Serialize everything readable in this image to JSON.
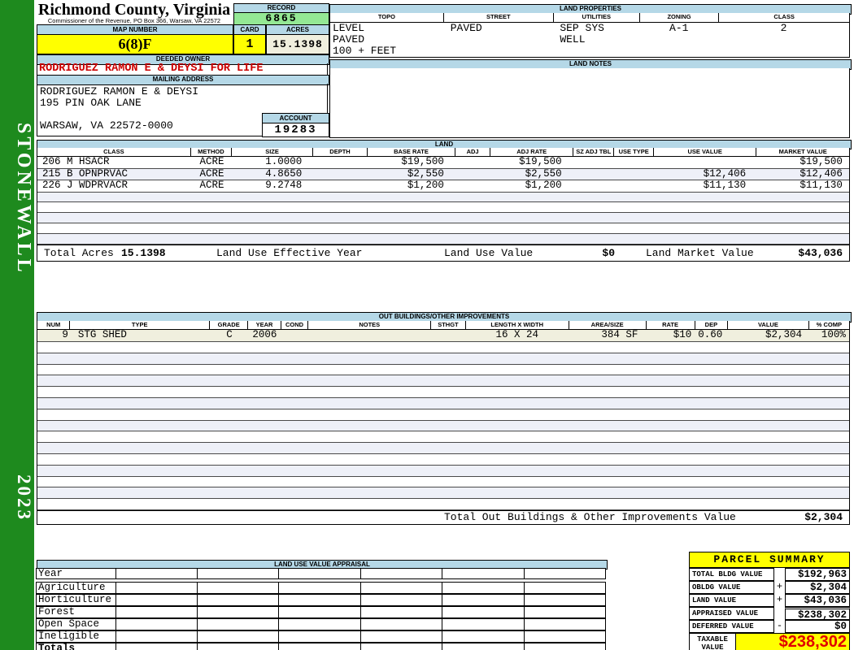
{
  "sidebar": {
    "district": "STONEWALL",
    "year": "2023"
  },
  "header": {
    "county": "Richmond County, Virginia",
    "commissioner_line": "Commissioner of the Revenue, PO Box 366, Warsaw, VA 22572",
    "record_label": "RECORD",
    "record_value": "6865",
    "map_number_label": "MAP NUMBER",
    "map_number_value": "6(8)F",
    "card_label": "CARD",
    "card_value": "1",
    "acres_label": "ACRES",
    "acres_value": "15.1398"
  },
  "owner": {
    "deeded_owner_label": "DEEDED OWNER",
    "deeded_owner": "RODRIGUEZ RAMON E & DEYSI FOR LIFE",
    "mailing_address_label": "MAILING ADDRESS",
    "address_line1": "RODRIGUEZ RAMON E & DEYSI",
    "address_line2": "195 PIN OAK LANE",
    "address_line3": "WARSAW, VA 22572-0000",
    "account_label": "ACCOUNT",
    "account_value": "19283"
  },
  "land_properties": {
    "title": "LAND PROPERTIES",
    "headers": [
      "TOPO",
      "STREET",
      "UTILITIES",
      "ZONING",
      "CLASS"
    ],
    "topo": [
      "LEVEL",
      "PAVED",
      "100 + FEET"
    ],
    "street": [
      "PAVED"
    ],
    "utilities": [
      "SEP SYS",
      "WELL"
    ],
    "zoning": "A-1",
    "class": "2"
  },
  "land_notes": {
    "title": "LAND NOTES"
  },
  "land": {
    "title": "LAND",
    "headers": [
      "CLASS",
      "METHOD",
      "SIZE",
      "DEPTH",
      "BASE RATE",
      "ADJ",
      "ADJ RATE",
      "SZ ADJ TBL",
      "USE TYPE",
      "USE VALUE",
      "MARKET VALUE"
    ],
    "rows": [
      {
        "class": "206 M HSACR",
        "method": "ACRE",
        "size": "1.0000",
        "depth": "",
        "base_rate": "$19,500",
        "adj": "",
        "adj_rate": "$19,500",
        "sz_adj_tbl": "",
        "use_type": "",
        "use_value": "",
        "market_value": "$19,500"
      },
      {
        "class": "215 B OPNPRVAC",
        "method": "ACRE",
        "size": "4.8650",
        "depth": "",
        "base_rate": "$2,550",
        "adj": "",
        "adj_rate": "$2,550",
        "sz_adj_tbl": "",
        "use_type": "",
        "use_value": "$12,406",
        "market_value": "$12,406"
      },
      {
        "class": "226 J WDPRVACR",
        "method": "ACRE",
        "size": "9.2748",
        "depth": "",
        "base_rate": "$1,200",
        "adj": "",
        "adj_rate": "$1,200",
        "sz_adj_tbl": "",
        "use_type": "",
        "use_value": "$11,130",
        "market_value": "$11,130"
      }
    ],
    "totals": {
      "total_acres_label": "Total Acres",
      "total_acres": "15.1398",
      "effective_year_label": "Land Use Effective Year",
      "use_value_label": "Land Use Value",
      "use_value": "$0",
      "market_value_label": "Land Market Value",
      "market_value": "$43,036"
    }
  },
  "out_buildings": {
    "title": "OUT BUILDINGS/OTHER IMPROVEMENTS",
    "headers": [
      "NUM",
      "TYPE",
      "GRADE",
      "YEAR",
      "COND",
      "NOTES",
      "STHGT",
      "LENGTH X WIDTH",
      "AREA/SIZE",
      "RATE",
      "DEP",
      "VALUE",
      "% COMP"
    ],
    "rows": [
      {
        "num": "9",
        "type": "STG SHED",
        "grade": "C",
        "year": "2006",
        "cond": "",
        "notes": "",
        "sthgt": "",
        "length_x_width": "16 X 24",
        "area_size": "384 SF",
        "rate": "$10",
        "dep": "0.60",
        "value": "$2,304",
        "pct_comp": "100%"
      }
    ],
    "total_label": "Total Out Buildings & Other Improvements Value",
    "total_value": "$2,304"
  },
  "land_use_appraisal": {
    "title": "LAND USE VALUE APPRAISAL",
    "row_labels": [
      "Year",
      "Agriculture",
      "Horticulture",
      "Forest",
      "Open Space",
      "Ineligible",
      "Totals"
    ]
  },
  "parcel_summary": {
    "title": "PARCEL SUMMARY",
    "rows": [
      {
        "label": "TOTAL BLDG VALUE",
        "op": "",
        "value": "$192,963"
      },
      {
        "label": "OBLDG VALUE",
        "op": "+",
        "value": "$2,304"
      },
      {
        "label": "LAND VALUE",
        "op": "+",
        "value": "$43,036"
      },
      {
        "label": "APPRAISED VALUE",
        "op": "",
        "value": "$238,302"
      },
      {
        "label": "DEFERRED VALUE",
        "op": "-",
        "value": "$0"
      }
    ],
    "taxable_label_line1": "TAXABLE",
    "taxable_label_line2": "VALUE",
    "taxable_value": "$238,302"
  },
  "colors": {
    "sidebar_green": "#1e8a1e",
    "header_blue": "#b5d8e7",
    "record_green": "#94e894",
    "highlight_yellow": "#ffff00",
    "cream": "#f0efde",
    "owner_red": "#cc0000",
    "taxable_red": "#e00000",
    "row_stripe": "#eef0f8"
  }
}
